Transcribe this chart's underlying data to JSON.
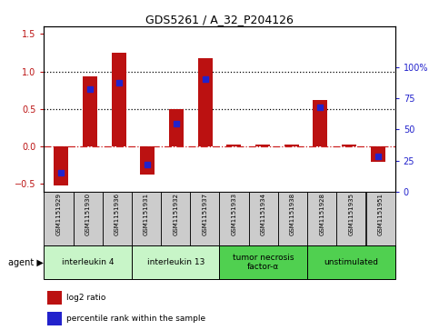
{
  "title": "GDS5261 / A_32_P204126",
  "samples": [
    "GSM1151929",
    "GSM1151930",
    "GSM1151936",
    "GSM1151931",
    "GSM1151932",
    "GSM1151937",
    "GSM1151933",
    "GSM1151934",
    "GSM1151938",
    "GSM1151928",
    "GSM1151935",
    "GSM1151951"
  ],
  "log2_ratio": [
    -0.52,
    0.93,
    1.25,
    -0.38,
    0.5,
    1.18,
    0.03,
    0.02,
    0.02,
    0.62,
    0.02,
    -0.2
  ],
  "percentile": [
    15,
    83,
    88,
    22,
    55,
    91,
    0,
    0,
    0,
    68,
    0,
    28
  ],
  "groups": [
    {
      "label": "interleukin 4",
      "start": 0,
      "end": 3,
      "color": "#c8f5c8"
    },
    {
      "label": "interleukin 13",
      "start": 3,
      "end": 6,
      "color": "#c8f5c8"
    },
    {
      "label": "tumor necrosis\nfactor-α",
      "start": 6,
      "end": 9,
      "color": "#50d050"
    },
    {
      "label": "unstimulated",
      "start": 9,
      "end": 12,
      "color": "#50d050"
    }
  ],
  "bar_color": "#bb1111",
  "dot_color": "#2222cc",
  "ylim_left": [
    -0.6,
    1.6
  ],
  "ylim_right": [
    0,
    133.33
  ],
  "yticks_left": [
    -0.5,
    0.0,
    0.5,
    1.0,
    1.5
  ],
  "yticks_right": [
    0,
    25,
    50,
    75,
    100
  ],
  "hlines": [
    0.5,
    1.0
  ],
  "hline_zero_color": "#cc2222",
  "legend_items": [
    {
      "label": "log2 ratio",
      "color": "#bb1111"
    },
    {
      "label": "percentile rank within the sample",
      "color": "#2222cc"
    }
  ],
  "agent_label": "agent ▶",
  "bg_color": "#ffffff",
  "sample_bg": "#cccccc",
  "bar_width": 0.5
}
